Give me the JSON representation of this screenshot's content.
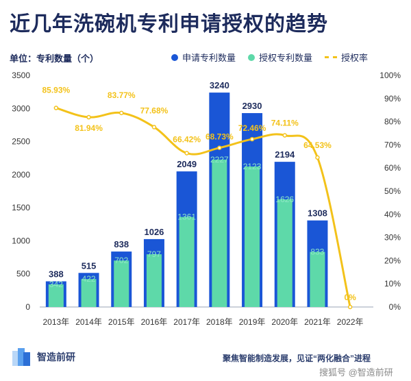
{
  "title": "近几年洗碗机专利申请授权的趋势",
  "unit_label": "单位：专利数量（个）",
  "legend": {
    "applied": "申请专利数量",
    "granted": "授权专利数量",
    "rate": "授权率"
  },
  "colors": {
    "applied": "#1a56d6",
    "granted": "#5ed9a9",
    "rate": "#f3c21a",
    "title": "#1d2b5c"
  },
  "chart_data": {
    "type": "bar",
    "categories": [
      "2013年",
      "2014年",
      "2015年",
      "2016年",
      "2017年",
      "2018年",
      "2019年",
      "2020年",
      "2021年",
      "2022年"
    ],
    "series": [
      {
        "name": "申请专利数量",
        "values": [
          388,
          515,
          838,
          1026,
          2049,
          3240,
          2930,
          2194,
          1308,
          0
        ]
      },
      {
        "name": "授权专利数量",
        "values": [
          342,
          422,
          702,
          797,
          1361,
          2227,
          2123,
          1626,
          833,
          0
        ]
      },
      {
        "name": "授权率",
        "type": "line",
        "axis": "right",
        "values": [
          85.93,
          81.94,
          83.77,
          77.68,
          66.42,
          68.73,
          72.46,
          74.11,
          64.53,
          0
        ]
      }
    ],
    "applied_labels": [
      "388",
      "515",
      "838",
      "1026",
      "2049",
      "3240",
      "2930",
      "2194",
      "1308",
      ""
    ],
    "granted_labels": [
      "342",
      "422",
      "702",
      "797",
      "1361",
      "2227",
      "2123",
      "1626",
      "833",
      ""
    ],
    "rate_labels": [
      "85.93%",
      "81.94%",
      "83.77%",
      "77.68%",
      "66.42%",
      "68.73%",
      "72.46%",
      "74.11%",
      "64.53%",
      "0%"
    ],
    "yticks_left": [
      "0",
      "500",
      "1000",
      "1500",
      "2000",
      "2500",
      "3000",
      "3500"
    ],
    "yticks_right": [
      "0%",
      "10%",
      "20%",
      "30%",
      "40%",
      "50%",
      "60%",
      "70%",
      "80%",
      "90%",
      "100%"
    ],
    "ylim_left": [
      0,
      3500
    ],
    "ylim_right": [
      0,
      100
    ],
    "legend_position": "top-right",
    "grid": false
  },
  "footer": {
    "logo_text": "智造前研",
    "slogan": "聚焦智能制造发展，见证“两化融合”进程",
    "watermark": "搜狐号 @智造前研"
  }
}
